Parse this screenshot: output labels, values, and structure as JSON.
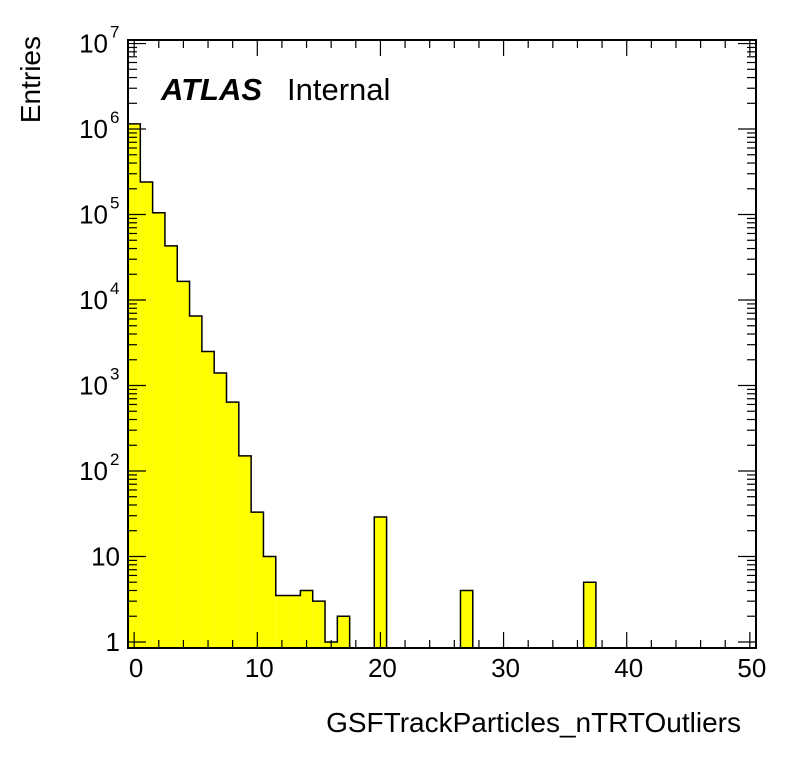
{
  "chart_data": {
    "type": "bar",
    "histogram": true,
    "title": "",
    "xlabel": "GSFTrackParticles_nTRTOutliers",
    "ylabel": "Entries",
    "xlim": [
      -0.5,
      50.5
    ],
    "ylim": [
      0.85,
      11000000
    ],
    "yscale": "log",
    "bin_width": 1,
    "grid": false,
    "legend": "none",
    "fill_color": "#ffff00",
    "line_color": "#000000",
    "annotation": {
      "bold": "ATLAS",
      "text": "Internal"
    },
    "x_ticks": [
      0,
      10,
      20,
      30,
      40,
      50
    ],
    "x_tick_labels": [
      "0",
      "10",
      "20",
      "30",
      "40",
      "50"
    ],
    "y_ticks": [
      {
        "value": 1,
        "base": "1",
        "exp": ""
      },
      {
        "value": 10,
        "base": "10",
        "exp": ""
      },
      {
        "value": 100,
        "base": "10",
        "exp": "2"
      },
      {
        "value": 1000,
        "base": "10",
        "exp": "3"
      },
      {
        "value": 10000,
        "base": "10",
        "exp": "4"
      },
      {
        "value": 100000,
        "base": "10",
        "exp": "5"
      },
      {
        "value": 1000000,
        "base": "10",
        "exp": "6"
      },
      {
        "value": 10000000,
        "base": "10",
        "exp": "7"
      }
    ],
    "bins": [
      {
        "x": 0,
        "value": 1150000
      },
      {
        "x": 1,
        "value": 240000
      },
      {
        "x": 2,
        "value": 105000
      },
      {
        "x": 3,
        "value": 43000
      },
      {
        "x": 4,
        "value": 16500
      },
      {
        "x": 5,
        "value": 6500
      },
      {
        "x": 6,
        "value": 2500
      },
      {
        "x": 7,
        "value": 1400
      },
      {
        "x": 8,
        "value": 640
      },
      {
        "x": 9,
        "value": 150
      },
      {
        "x": 10,
        "value": 33
      },
      {
        "x": 11,
        "value": 10
      },
      {
        "x": 12,
        "value": 3.5
      },
      {
        "x": 13,
        "value": 3.5
      },
      {
        "x": 14,
        "value": 4
      },
      {
        "x": 15,
        "value": 3
      },
      {
        "x": 16,
        "value": 1
      },
      {
        "x": 17,
        "value": 2
      },
      {
        "x": 18,
        "value": 0
      },
      {
        "x": 19,
        "value": 0
      },
      {
        "x": 20,
        "value": 29
      },
      {
        "x": 21,
        "value": 0
      },
      {
        "x": 22,
        "value": 0
      },
      {
        "x": 23,
        "value": 0
      },
      {
        "x": 24,
        "value": 0
      },
      {
        "x": 25,
        "value": 0
      },
      {
        "x": 26,
        "value": 0
      },
      {
        "x": 27,
        "value": 4
      },
      {
        "x": 28,
        "value": 0
      },
      {
        "x": 29,
        "value": 0
      },
      {
        "x": 30,
        "value": 0
      },
      {
        "x": 31,
        "value": 0
      },
      {
        "x": 32,
        "value": 0
      },
      {
        "x": 33,
        "value": 0
      },
      {
        "x": 34,
        "value": 0
      },
      {
        "x": 35,
        "value": 0
      },
      {
        "x": 36,
        "value": 0
      },
      {
        "x": 37,
        "value": 5
      }
    ]
  }
}
